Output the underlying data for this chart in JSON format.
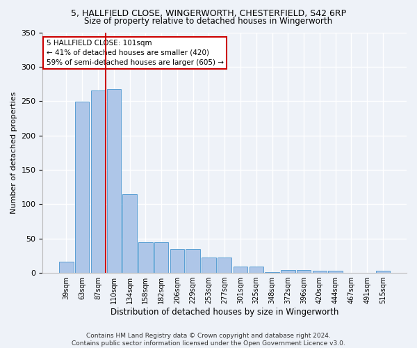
{
  "title_line1": "5, HALLFIELD CLOSE, WINGERWORTH, CHESTERFIELD, S42 6RP",
  "title_line2": "Size of property relative to detached houses in Wingerworth",
  "xlabel": "Distribution of detached houses by size in Wingerworth",
  "ylabel": "Number of detached properties",
  "bar_labels": [
    "39sqm",
    "63sqm",
    "87sqm",
    "110sqm",
    "134sqm",
    "158sqm",
    "182sqm",
    "206sqm",
    "229sqm",
    "253sqm",
    "277sqm",
    "301sqm",
    "325sqm",
    "348sqm",
    "372sqm",
    "396sqm",
    "420sqm",
    "444sqm",
    "467sqm",
    "491sqm",
    "515sqm"
  ],
  "bar_values": [
    16,
    249,
    265,
    267,
    115,
    45,
    45,
    35,
    35,
    22,
    22,
    9,
    9,
    1,
    4,
    4,
    3,
    3,
    0,
    0,
    3
  ],
  "bar_color": "#aec6e8",
  "bar_edge_color": "#5a9fd4",
  "vline_x": 2.5,
  "vline_color": "#cc0000",
  "annotation_text": "5 HALLFIELD CLOSE: 101sqm\n← 41% of detached houses are smaller (420)\n59% of semi-detached houses are larger (605) →",
  "annotation_box_color": "#ffffff",
  "annotation_box_edge": "#cc0000",
  "ylim": [
    0,
    350
  ],
  "yticks": [
    0,
    50,
    100,
    150,
    200,
    250,
    300,
    350
  ],
  "footer_line1": "Contains HM Land Registry data © Crown copyright and database right 2024.",
  "footer_line2": "Contains public sector information licensed under the Open Government Licence v3.0.",
  "bg_color": "#eef2f8",
  "grid_color": "#ffffff"
}
